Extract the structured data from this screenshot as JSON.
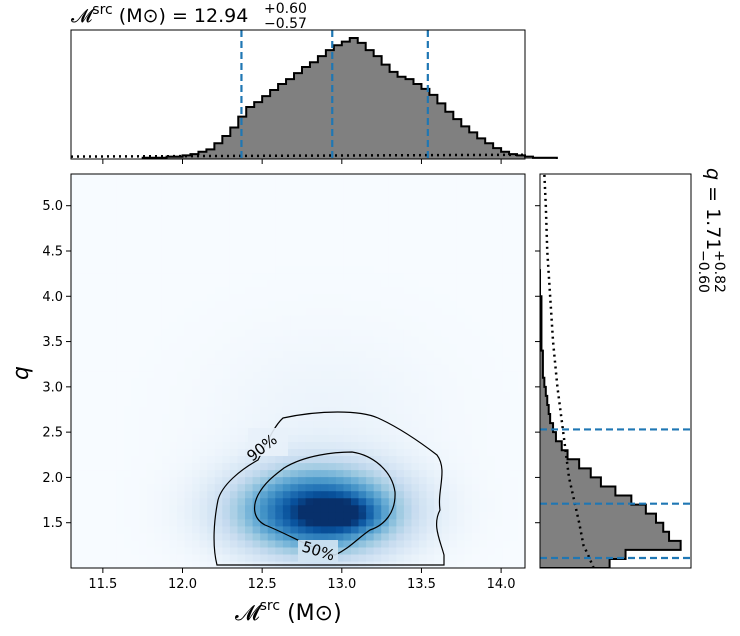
{
  "chart_data": {
    "type": "corner-posterior",
    "title_top": {
      "symbol": "𝓜",
      "sup": "src",
      "unit": "(M⊙)",
      "value": "12.94",
      "plus": "+0.60",
      "minus": "−0.57"
    },
    "title_right": {
      "symbol": "q",
      "value": "1.71",
      "plus": "+0.82",
      "minus": "−0.60"
    },
    "xlabel": {
      "symbol": "𝓜",
      "sup": "src",
      "unit": "(M⊙)"
    },
    "ylabel": "q",
    "xlim": [
      11.3,
      14.15
    ],
    "ylim": [
      1.0,
      5.35
    ],
    "xticks": [
      "11.5",
      "12.0",
      "12.5",
      "13.0",
      "13.5",
      "14.0"
    ],
    "xtick_values": [
      11.5,
      12.0,
      12.5,
      13.0,
      13.5,
      14.0
    ],
    "yticks": [
      "1.5",
      "2.0",
      "2.5",
      "3.0",
      "3.5",
      "4.0",
      "4.5",
      "5.0"
    ],
    "ytick_values": [
      1.5,
      2.0,
      2.5,
      3.0,
      3.5,
      4.0,
      4.5,
      5.0
    ],
    "mchirp": {
      "median": 12.94,
      "lower": 12.37,
      "upper": 13.54,
      "hist_bin_width": 0.05,
      "hist_bins_start": 11.75,
      "hist_density": [
        0.01,
        0.01,
        0.01,
        0.02,
        0.02,
        0.03,
        0.04,
        0.06,
        0.08,
        0.13,
        0.19,
        0.26,
        0.35,
        0.43,
        0.47,
        0.52,
        0.57,
        0.62,
        0.66,
        0.71,
        0.76,
        0.8,
        0.85,
        0.9,
        0.94,
        0.97,
        1.0,
        0.96,
        0.9,
        0.85,
        0.78,
        0.72,
        0.68,
        0.66,
        0.62,
        0.58,
        0.53,
        0.46,
        0.39,
        0.33,
        0.27,
        0.22,
        0.17,
        0.13,
        0.09,
        0.06,
        0.04,
        0.03,
        0.02,
        0.01,
        0.01,
        0.01
      ],
      "prior_density": [
        0.02,
        0.035
      ]
    },
    "q": {
      "median": 1.71,
      "lower": 1.11,
      "upper": 2.53,
      "hist_bin_width": 0.1,
      "hist_bins_start": 1.0,
      "hist_density": [
        0.48,
        0.59,
        0.97,
        0.89,
        0.85,
        0.8,
        0.73,
        0.63,
        0.52,
        0.42,
        0.35,
        0.27,
        0.19,
        0.15,
        0.11,
        0.09,
        0.07,
        0.06,
        0.05,
        0.04,
        0.03,
        0.02,
        0.02,
        0.02,
        0.01,
        0.01,
        0.01,
        0.01,
        0.01,
        0.01,
        0.0,
        0.0,
        0.0
      ],
      "prior_points": [
        [
          1.0,
          0.37
        ],
        [
          1.15,
          0.33
        ],
        [
          1.25,
          0.3
        ],
        [
          1.5,
          0.27
        ],
        [
          2.0,
          0.2
        ],
        [
          2.5,
          0.16
        ],
        [
          3.0,
          0.12
        ],
        [
          3.5,
          0.09
        ],
        [
          4.0,
          0.07
        ],
        [
          4.5,
          0.05
        ],
        [
          5.0,
          0.04
        ],
        [
          5.35,
          0.03
        ]
      ]
    },
    "density_2d": {
      "peak": [
        12.85,
        1.63
      ],
      "sigma_x": 0.36,
      "sigma_y": 0.33,
      "secondary_peak": [
        13.0,
        1.6
      ],
      "max_shading": "#08306b"
    },
    "contours": [
      {
        "label": "90%",
        "label_at": [
          12.35,
          2.3
        ]
      },
      {
        "label": "50%",
        "label_at": [
          12.82,
          1.27
        ]
      }
    ],
    "colors": {
      "hist_fill": "#808080",
      "quantile_lines": "#1f77b4",
      "contour": "#000000",
      "colormap": "Blues"
    }
  }
}
